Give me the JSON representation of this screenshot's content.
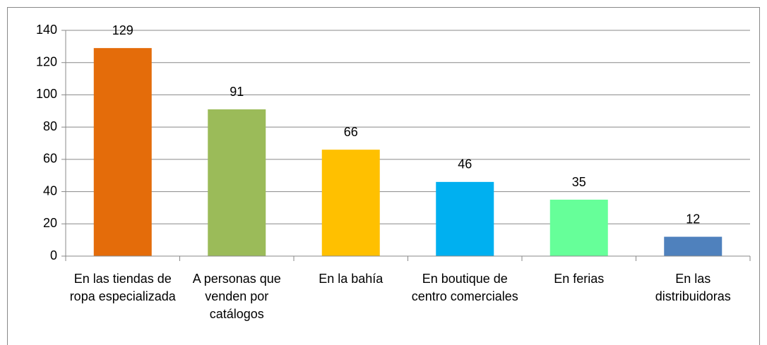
{
  "chart_data": {
    "type": "bar",
    "categories": [
      "En las tiendas de ropa especializada",
      "A personas que venden por catálogos",
      "En la bahía",
      "En boutique de centro comerciales",
      "En ferias",
      "En las distribuidoras"
    ],
    "values": [
      129,
      91,
      66,
      46,
      35,
      12
    ],
    "colors": [
      "#e46c0a",
      "#9bbb59",
      "#ffc000",
      "#00b0f0",
      "#66ff99",
      "#4f81bd"
    ],
    "ylim": [
      0,
      140
    ],
    "yticks": [
      0,
      20,
      40,
      60,
      80,
      100,
      120,
      140
    ],
    "grid": true
  }
}
